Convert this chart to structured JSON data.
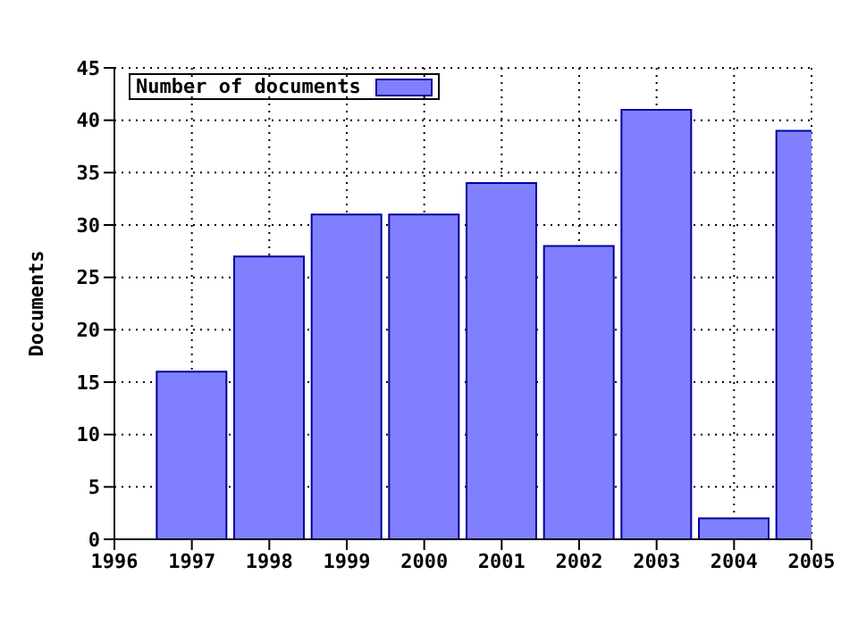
{
  "chart_data": {
    "type": "bar",
    "ylabel": "Documents",
    "x": [
      1997,
      1998,
      1999,
      2000,
      2001,
      2002,
      2003,
      2004,
      2005
    ],
    "series": [
      {
        "name": "Number of documents",
        "color": "#8080ff",
        "values": [
          16,
          27,
          31,
          31,
          34,
          28,
          41,
          2,
          39
        ]
      }
    ],
    "xlim": [
      1996,
      2005
    ],
    "xticks": [
      1996,
      1997,
      1998,
      1999,
      2000,
      2001,
      2002,
      2003,
      2004,
      2005
    ],
    "ylim": [
      0,
      45
    ],
    "yticks": [
      0,
      5,
      10,
      15,
      20,
      25,
      30,
      35,
      40,
      45
    ],
    "grid": true,
    "legend": "top left"
  }
}
